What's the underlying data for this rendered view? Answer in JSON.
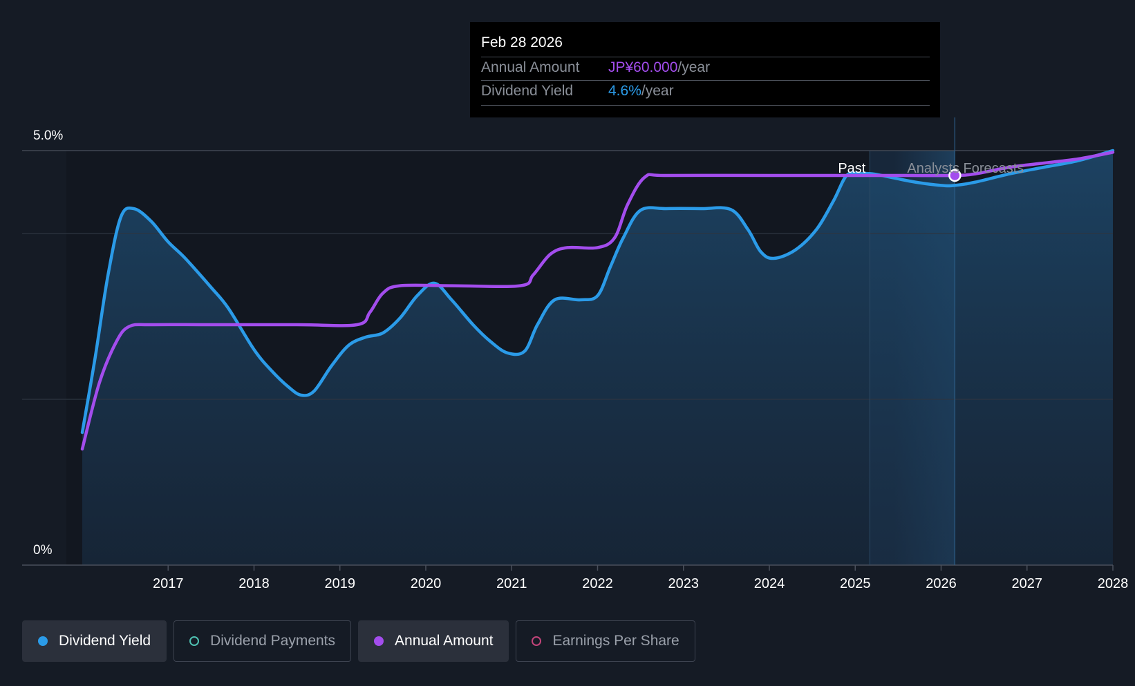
{
  "chart_data": {
    "type": "line",
    "y_axis_labels": [
      "5.0%",
      "0%"
    ],
    "ylim": [
      0,
      5.0
    ],
    "xlim": [
      2015.3,
      2028.0
    ],
    "x_tick_labels": [
      "2017",
      "2018",
      "2019",
      "2020",
      "2021",
      "2022",
      "2023",
      "2024",
      "2025",
      "2026",
      "2027",
      "2028"
    ],
    "x_tick_values": [
      2017,
      2018,
      2019,
      2020,
      2021,
      2022,
      2023,
      2024,
      2025,
      2026,
      2027,
      2028
    ],
    "past_label": "Past",
    "forecast_label": "Analysts Forecasts",
    "past_end_x": 2025.17,
    "forecast_start_x": 2025.45,
    "hover_x": 2026.16,
    "series": [
      {
        "name": "Dividend Yield",
        "color": "#2b9be8",
        "points": [
          [
            2016.0,
            1.6
          ],
          [
            2016.15,
            2.5
          ],
          [
            2016.3,
            3.5
          ],
          [
            2016.45,
            4.2
          ],
          [
            2016.6,
            4.3
          ],
          [
            2016.8,
            4.15
          ],
          [
            2017.0,
            3.9
          ],
          [
            2017.2,
            3.7
          ],
          [
            2017.5,
            3.35
          ],
          [
            2017.7,
            3.1
          ],
          [
            2018.0,
            2.6
          ],
          [
            2018.2,
            2.35
          ],
          [
            2018.4,
            2.15
          ],
          [
            2018.55,
            2.05
          ],
          [
            2018.7,
            2.1
          ],
          [
            2018.9,
            2.4
          ],
          [
            2019.1,
            2.65
          ],
          [
            2019.3,
            2.75
          ],
          [
            2019.5,
            2.8
          ],
          [
            2019.7,
            2.98
          ],
          [
            2019.9,
            3.25
          ],
          [
            2020.1,
            3.4
          ],
          [
            2020.3,
            3.2
          ],
          [
            2020.55,
            2.9
          ],
          [
            2020.75,
            2.7
          ],
          [
            2020.95,
            2.56
          ],
          [
            2021.15,
            2.58
          ],
          [
            2021.3,
            2.9
          ],
          [
            2021.5,
            3.2
          ],
          [
            2021.8,
            3.2
          ],
          [
            2022.0,
            3.25
          ],
          [
            2022.15,
            3.6
          ],
          [
            2022.3,
            3.95
          ],
          [
            2022.5,
            4.28
          ],
          [
            2022.8,
            4.3
          ],
          [
            2023.2,
            4.3
          ],
          [
            2023.55,
            4.29
          ],
          [
            2023.75,
            4.05
          ],
          [
            2023.9,
            3.78
          ],
          [
            2024.05,
            3.7
          ],
          [
            2024.3,
            3.8
          ],
          [
            2024.55,
            4.05
          ],
          [
            2024.75,
            4.4
          ],
          [
            2024.9,
            4.7
          ],
          [
            2025.05,
            4.72
          ],
          [
            2025.2,
            4.72
          ],
          [
            2025.45,
            4.67
          ],
          [
            2025.7,
            4.62
          ],
          [
            2026.0,
            4.58
          ],
          [
            2026.16,
            4.58
          ],
          [
            2026.4,
            4.62
          ],
          [
            2026.8,
            4.72
          ],
          [
            2027.2,
            4.8
          ],
          [
            2027.6,
            4.88
          ],
          [
            2028.0,
            5.0
          ]
        ]
      },
      {
        "name": "Annual Amount",
        "color": "#a34ded",
        "points": [
          [
            2016.0,
            1.4
          ],
          [
            2016.2,
            2.2
          ],
          [
            2016.4,
            2.7
          ],
          [
            2016.55,
            2.88
          ],
          [
            2016.8,
            2.9
          ],
          [
            2017.5,
            2.9
          ],
          [
            2018.5,
            2.9
          ],
          [
            2019.2,
            2.9
          ],
          [
            2019.35,
            3.05
          ],
          [
            2019.5,
            3.28
          ],
          [
            2019.7,
            3.37
          ],
          [
            2020.3,
            3.37
          ],
          [
            2021.1,
            3.37
          ],
          [
            2021.25,
            3.5
          ],
          [
            2021.45,
            3.75
          ],
          [
            2021.65,
            3.83
          ],
          [
            2022.0,
            3.83
          ],
          [
            2022.2,
            3.95
          ],
          [
            2022.35,
            4.35
          ],
          [
            2022.55,
            4.68
          ],
          [
            2022.8,
            4.7
          ],
          [
            2024.0,
            4.7
          ],
          [
            2025.0,
            4.7
          ],
          [
            2025.6,
            4.7
          ],
          [
            2026.16,
            4.7
          ],
          [
            2026.4,
            4.72
          ],
          [
            2026.8,
            4.8
          ],
          [
            2027.2,
            4.85
          ],
          [
            2027.6,
            4.9
          ],
          [
            2028.0,
            4.98
          ]
        ]
      }
    ]
  },
  "tooltip": {
    "date": "Feb 28 2026",
    "annual_amount_label": "Annual Amount",
    "annual_amount_value": "JP¥60.000",
    "annual_amount_unit": "/year",
    "dividend_yield_label": "Dividend Yield",
    "dividend_yield_value": "4.6%",
    "dividend_yield_unit": "/year"
  },
  "legend": [
    {
      "label": "Dividend Yield",
      "color": "#2b9be8",
      "active": true,
      "filled": true
    },
    {
      "label": "Dividend Payments",
      "color": "#4fc1b2",
      "active": false,
      "filled": false
    },
    {
      "label": "Annual Amount",
      "color": "#a34ded",
      "active": true,
      "filled": true
    },
    {
      "label": "Earnings Per Share",
      "color": "#c2447a",
      "active": false,
      "filled": false
    }
  ],
  "colors": {
    "background": "#151b25",
    "plot_background": "#121720",
    "grid": "#3a404b",
    "axis_text": "#ffffff",
    "forecast_text": "#8a8f98"
  }
}
